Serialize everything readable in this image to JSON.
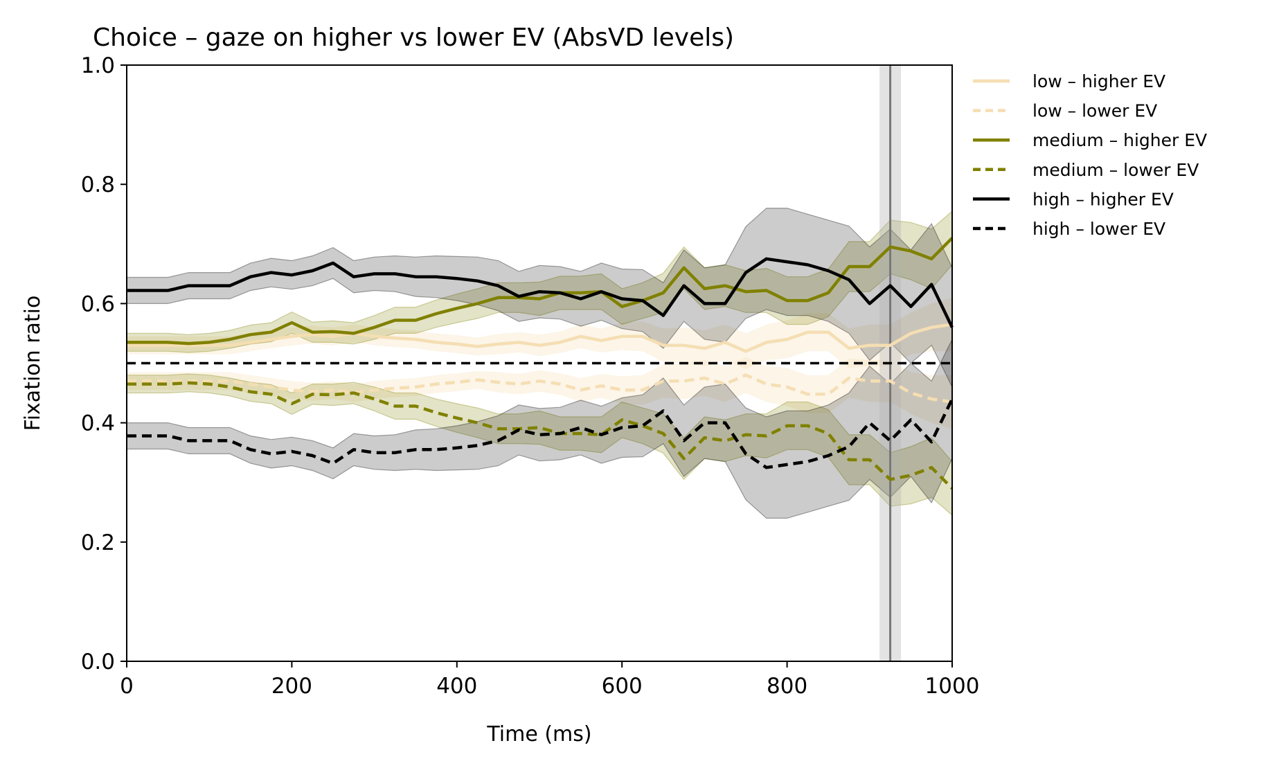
{
  "chart_data": {
    "type": "line",
    "title": "Choice – gaze on higher vs lower EV (AbsVD levels)",
    "xlabel": "Time (ms)",
    "ylabel": "Fixation ratio",
    "xlim": [
      0,
      1000
    ],
    "ylim": [
      0.0,
      1.0
    ],
    "xticks": [
      0,
      200,
      400,
      600,
      800,
      1000
    ],
    "xtick_labels": [
      "0",
      "200",
      "400",
      "600",
      "800",
      "1000"
    ],
    "yticks": [
      0.0,
      0.2,
      0.4,
      0.6,
      0.8,
      1.0
    ],
    "ytick_labels": [
      "0.0",
      "0.2",
      "0.4",
      "0.6",
      "0.8",
      "1.0"
    ],
    "grid": false,
    "legend_position": "outside-right-top",
    "reference_lines": {
      "horizontal_dashed_y": 0.5,
      "vertical_dashed_x": 0,
      "vertical_solid_x": 925,
      "vertical_band": [
        912,
        938
      ]
    },
    "x": [
      0,
      25,
      50,
      75,
      100,
      125,
      150,
      175,
      200,
      225,
      250,
      275,
      300,
      325,
      350,
      375,
      400,
      425,
      450,
      475,
      500,
      525,
      550,
      575,
      600,
      625,
      650,
      675,
      700,
      725,
      750,
      775,
      800,
      825,
      850,
      875,
      900,
      925,
      950,
      975,
      1000
    ],
    "series": [
      {
        "name": "low – higher EV",
        "color": "#f5deb3",
        "dash": "solid",
        "values": [
          0.53,
          0.53,
          0.53,
          0.53,
          0.53,
          0.53,
          0.535,
          0.54,
          0.545,
          0.548,
          0.545,
          0.55,
          0.545,
          0.542,
          0.54,
          0.535,
          0.532,
          0.528,
          0.532,
          0.535,
          0.53,
          0.535,
          0.545,
          0.538,
          0.545,
          0.545,
          0.53,
          0.53,
          0.525,
          0.535,
          0.52,
          0.535,
          0.54,
          0.552,
          0.552,
          0.525,
          0.53,
          0.53,
          0.55,
          0.56,
          0.565
        ],
        "ci_low": [
          0.515,
          0.515,
          0.515,
          0.515,
          0.515,
          0.515,
          0.52,
          0.525,
          0.53,
          0.533,
          0.53,
          0.535,
          0.53,
          0.527,
          0.525,
          0.52,
          0.517,
          0.513,
          0.515,
          0.518,
          0.512,
          0.517,
          0.525,
          0.518,
          0.522,
          0.52,
          0.502,
          0.5,
          0.495,
          0.505,
          0.49,
          0.505,
          0.508,
          0.52,
          0.52,
          0.492,
          0.495,
          0.495,
          0.515,
          0.52,
          0.52
        ],
        "ci_high": [
          0.545,
          0.545,
          0.545,
          0.545,
          0.545,
          0.545,
          0.55,
          0.555,
          0.56,
          0.563,
          0.56,
          0.565,
          0.56,
          0.557,
          0.555,
          0.55,
          0.547,
          0.543,
          0.549,
          0.552,
          0.548,
          0.553,
          0.565,
          0.558,
          0.568,
          0.57,
          0.558,
          0.56,
          0.555,
          0.565,
          0.55,
          0.565,
          0.572,
          0.584,
          0.584,
          0.558,
          0.565,
          0.565,
          0.585,
          0.6,
          0.61
        ]
      },
      {
        "name": "low – lower EV",
        "color": "#f5deb3",
        "dash": "dashed",
        "values": [
          0.47,
          0.47,
          0.47,
          0.47,
          0.47,
          0.47,
          0.465,
          0.46,
          0.455,
          0.452,
          0.455,
          0.45,
          0.455,
          0.458,
          0.46,
          0.465,
          0.468,
          0.472,
          0.468,
          0.465,
          0.47,
          0.465,
          0.455,
          0.462,
          0.455,
          0.455,
          0.47,
          0.47,
          0.475,
          0.465,
          0.48,
          0.465,
          0.46,
          0.448,
          0.448,
          0.475,
          0.47,
          0.47,
          0.45,
          0.44,
          0.435
        ],
        "ci_low": [
          0.455,
          0.455,
          0.455,
          0.455,
          0.455,
          0.455,
          0.45,
          0.445,
          0.44,
          0.437,
          0.44,
          0.435,
          0.44,
          0.443,
          0.445,
          0.45,
          0.453,
          0.457,
          0.451,
          0.448,
          0.452,
          0.447,
          0.435,
          0.442,
          0.432,
          0.43,
          0.442,
          0.44,
          0.445,
          0.435,
          0.45,
          0.435,
          0.428,
          0.416,
          0.416,
          0.442,
          0.435,
          0.435,
          0.415,
          0.4,
          0.39
        ],
        "ci_high": [
          0.485,
          0.485,
          0.485,
          0.485,
          0.485,
          0.485,
          0.48,
          0.475,
          0.47,
          0.467,
          0.47,
          0.465,
          0.47,
          0.473,
          0.475,
          0.48,
          0.483,
          0.487,
          0.485,
          0.482,
          0.488,
          0.483,
          0.475,
          0.482,
          0.478,
          0.48,
          0.498,
          0.5,
          0.505,
          0.495,
          0.51,
          0.495,
          0.492,
          0.48,
          0.48,
          0.508,
          0.505,
          0.505,
          0.485,
          0.48,
          0.48
        ]
      },
      {
        "name": "medium – higher EV",
        "color": "#808000",
        "dash": "solid",
        "values": [
          0.535,
          0.535,
          0.535,
          0.533,
          0.535,
          0.54,
          0.548,
          0.552,
          0.568,
          0.552,
          0.553,
          0.55,
          0.56,
          0.572,
          0.572,
          0.583,
          0.592,
          0.6,
          0.61,
          0.61,
          0.608,
          0.618,
          0.618,
          0.62,
          0.595,
          0.605,
          0.618,
          0.66,
          0.625,
          0.63,
          0.62,
          0.622,
          0.605,
          0.605,
          0.618,
          0.662,
          0.662,
          0.695,
          0.688,
          0.675,
          0.71
        ],
        "ci_low": [
          0.52,
          0.52,
          0.52,
          0.518,
          0.52,
          0.525,
          0.532,
          0.536,
          0.55,
          0.535,
          0.535,
          0.532,
          0.54,
          0.55,
          0.55,
          0.56,
          0.568,
          0.575,
          0.585,
          0.585,
          0.58,
          0.59,
          0.59,
          0.59,
          0.565,
          0.575,
          0.585,
          0.625,
          0.59,
          0.595,
          0.585,
          0.585,
          0.565,
          0.565,
          0.578,
          0.62,
          0.62,
          0.65,
          0.64,
          0.625,
          0.665
        ],
        "ci_high": [
          0.55,
          0.55,
          0.55,
          0.548,
          0.55,
          0.555,
          0.564,
          0.568,
          0.586,
          0.569,
          0.571,
          0.568,
          0.58,
          0.594,
          0.594,
          0.606,
          0.616,
          0.625,
          0.635,
          0.635,
          0.636,
          0.646,
          0.646,
          0.65,
          0.625,
          0.635,
          0.651,
          0.695,
          0.66,
          0.665,
          0.655,
          0.659,
          0.645,
          0.645,
          0.658,
          0.704,
          0.704,
          0.74,
          0.736,
          0.725,
          0.755
        ]
      },
      {
        "name": "medium – lower EV",
        "color": "#808000",
        "dash": "dashed",
        "values": [
          0.465,
          0.465,
          0.465,
          0.467,
          0.465,
          0.46,
          0.452,
          0.448,
          0.432,
          0.448,
          0.447,
          0.45,
          0.44,
          0.428,
          0.428,
          0.417,
          0.408,
          0.4,
          0.39,
          0.39,
          0.392,
          0.382,
          0.382,
          0.38,
          0.405,
          0.395,
          0.382,
          0.34,
          0.375,
          0.37,
          0.38,
          0.378,
          0.395,
          0.395,
          0.382,
          0.338,
          0.338,
          0.305,
          0.312,
          0.325,
          0.29
        ],
        "ci_low": [
          0.45,
          0.45,
          0.45,
          0.452,
          0.45,
          0.445,
          0.436,
          0.432,
          0.414,
          0.431,
          0.429,
          0.432,
          0.42,
          0.406,
          0.406,
          0.394,
          0.384,
          0.375,
          0.365,
          0.365,
          0.364,
          0.354,
          0.354,
          0.35,
          0.375,
          0.365,
          0.349,
          0.305,
          0.34,
          0.335,
          0.345,
          0.341,
          0.355,
          0.355,
          0.342,
          0.296,
          0.296,
          0.26,
          0.264,
          0.275,
          0.245
        ],
        "ci_high": [
          0.48,
          0.48,
          0.48,
          0.482,
          0.48,
          0.475,
          0.468,
          0.464,
          0.45,
          0.465,
          0.465,
          0.468,
          0.46,
          0.45,
          0.45,
          0.44,
          0.432,
          0.425,
          0.415,
          0.415,
          0.42,
          0.41,
          0.41,
          0.41,
          0.435,
          0.425,
          0.415,
          0.375,
          0.41,
          0.405,
          0.415,
          0.415,
          0.435,
          0.435,
          0.422,
          0.38,
          0.38,
          0.35,
          0.36,
          0.375,
          0.335
        ]
      },
      {
        "name": "high – higher EV",
        "color": "#000000",
        "dash": "solid",
        "values": [
          0.622,
          0.622,
          0.622,
          0.63,
          0.63,
          0.63,
          0.645,
          0.652,
          0.648,
          0.655,
          0.668,
          0.645,
          0.65,
          0.65,
          0.645,
          0.645,
          0.642,
          0.638,
          0.63,
          0.612,
          0.62,
          0.618,
          0.608,
          0.62,
          0.608,
          0.605,
          0.58,
          0.63,
          0.6,
          0.6,
          0.652,
          0.675,
          0.67,
          0.665,
          0.655,
          0.64,
          0.6,
          0.63,
          0.595,
          0.632,
          0.56
        ],
        "ci_low": [
          0.6,
          0.6,
          0.6,
          0.608,
          0.608,
          0.608,
          0.622,
          0.628,
          0.624,
          0.63,
          0.642,
          0.618,
          0.622,
          0.62,
          0.612,
          0.61,
          0.605,
          0.598,
          0.588,
          0.57,
          0.576,
          0.574,
          0.562,
          0.572,
          0.558,
          0.553,
          0.525,
          0.57,
          0.54,
          0.535,
          0.575,
          0.59,
          0.58,
          0.58,
          0.57,
          0.55,
          0.505,
          0.535,
          0.5,
          0.53,
          0.46
        ],
        "ci_high": [
          0.644,
          0.644,
          0.644,
          0.652,
          0.652,
          0.652,
          0.668,
          0.676,
          0.672,
          0.68,
          0.694,
          0.672,
          0.678,
          0.68,
          0.678,
          0.68,
          0.679,
          0.678,
          0.672,
          0.654,
          0.664,
          0.662,
          0.654,
          0.668,
          0.658,
          0.657,
          0.635,
          0.69,
          0.66,
          0.665,
          0.729,
          0.76,
          0.76,
          0.75,
          0.74,
          0.73,
          0.695,
          0.725,
          0.69,
          0.734,
          0.66
        ]
      },
      {
        "name": "high – lower EV",
        "color": "#000000",
        "dash": "dashed",
        "values": [
          0.378,
          0.378,
          0.378,
          0.37,
          0.37,
          0.37,
          0.355,
          0.348,
          0.352,
          0.345,
          0.332,
          0.355,
          0.35,
          0.35,
          0.355,
          0.355,
          0.358,
          0.362,
          0.37,
          0.388,
          0.38,
          0.382,
          0.392,
          0.38,
          0.392,
          0.395,
          0.42,
          0.37,
          0.4,
          0.4,
          0.348,
          0.325,
          0.33,
          0.335,
          0.345,
          0.36,
          0.4,
          0.37,
          0.405,
          0.368,
          0.44
        ],
        "ci_low": [
          0.356,
          0.356,
          0.356,
          0.348,
          0.348,
          0.348,
          0.332,
          0.324,
          0.328,
          0.32,
          0.306,
          0.328,
          0.322,
          0.32,
          0.322,
          0.32,
          0.321,
          0.322,
          0.328,
          0.346,
          0.336,
          0.338,
          0.346,
          0.332,
          0.342,
          0.343,
          0.365,
          0.31,
          0.34,
          0.335,
          0.271,
          0.24,
          0.24,
          0.25,
          0.26,
          0.27,
          0.305,
          0.275,
          0.31,
          0.266,
          0.34
        ],
        "ci_high": [
          0.4,
          0.4,
          0.4,
          0.392,
          0.392,
          0.392,
          0.378,
          0.372,
          0.376,
          0.37,
          0.358,
          0.382,
          0.378,
          0.38,
          0.388,
          0.39,
          0.395,
          0.402,
          0.412,
          0.43,
          0.424,
          0.426,
          0.438,
          0.428,
          0.442,
          0.447,
          0.475,
          0.43,
          0.46,
          0.465,
          0.425,
          0.41,
          0.42,
          0.42,
          0.43,
          0.45,
          0.495,
          0.465,
          0.5,
          0.47,
          0.54
        ]
      }
    ]
  }
}
